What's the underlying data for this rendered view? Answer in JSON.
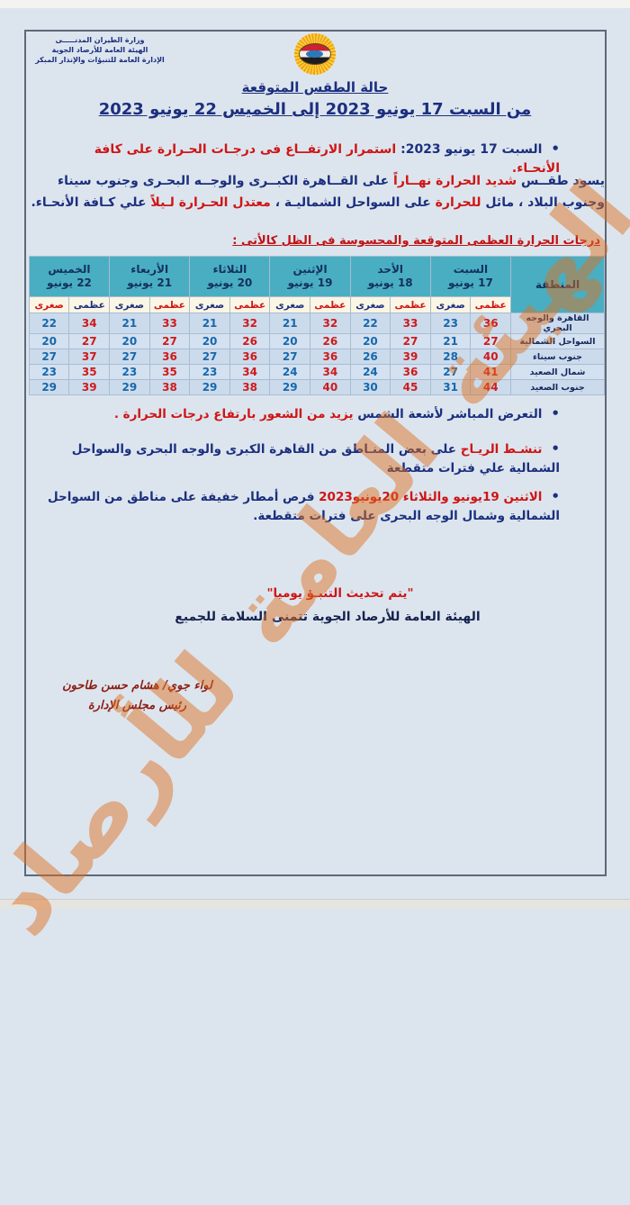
{
  "agency_lines": [
    "وزارة الطيران المدنـــــى",
    "الهيئة العامة للأرصاد الجوية",
    "الإدارة العامة للتنبؤات والإنذار المبكر"
  ],
  "title1": "حالة الطقس المتوقعة",
  "title2": "من السبت 17 يونيو 2023 إلى الخميس 22 يونيو 2023",
  "bullet1": [
    {
      "t": "السبت 17 يونيو 2023: ",
      "tone": "navy"
    },
    {
      "t": "استمرار الارتفــاع فى درجـات الحـرارة على كافة الأنحـاء.",
      "tone": "red"
    }
  ],
  "paragraph": [
    {
      "t": "يسود طقــس ",
      "tone": "navy"
    },
    {
      "t": "شديد الحرارة  نهــاراً ",
      "tone": "red"
    },
    {
      "t": "على القــاهرة الكبــرى والوجــه البحـرى وجنوب سيناء وجنوب البلاد ، مائل ",
      "tone": "navy"
    },
    {
      "t": "للحرارة ",
      "tone": "red"
    },
    {
      "t": "على السواحل الشماليـة ، ",
      "tone": "navy"
    },
    {
      "t": "معتدل الحـرارة لـيلاً ",
      "tone": "red"
    },
    {
      "t": "علي كـافة الأنحـاء.",
      "tone": "navy"
    }
  ],
  "table": {
    "caption": "درجات الحرارة العظمى المتوقعة والمحسوسة فى الظل كالأتى :",
    "region_header": "المنطقة",
    "days": [
      {
        "name": "السبت",
        "date": "17 يونيو",
        "max_label": "عظمى",
        "min_label": "صغرى",
        "max_tone": "red",
        "min_tone": "navy"
      },
      {
        "name": "الأحد",
        "date": "18 يونيو",
        "max_label": "عظمى",
        "min_label": "صغرى",
        "max_tone": "red",
        "min_tone": "navy"
      },
      {
        "name": "الإثنين",
        "date": "19 يونيو",
        "max_label": "عظمى",
        "min_label": "صغرى",
        "max_tone": "red",
        "min_tone": "navy"
      },
      {
        "name": "الثلاثاء",
        "date": "20 يونيو",
        "max_label": "عظمى",
        "min_label": "صغرى",
        "max_tone": "red",
        "min_tone": "navy"
      },
      {
        "name": "الأربعاء",
        "date": "21 يونيو",
        "max_label": "عظمى",
        "min_label": "صغرى",
        "max_tone": "red",
        "min_tone": "navy"
      },
      {
        "name": "الخميس",
        "date": "22 يونيو",
        "max_label": "عظمى",
        "min_label": "صغرى",
        "max_tone": "navy",
        "min_tone": "red"
      }
    ],
    "rows": [
      {
        "region": "القاهرة والوجه البحري",
        "temps": [
          [
            36,
            23
          ],
          [
            33,
            22
          ],
          [
            32,
            21
          ],
          [
            32,
            21
          ],
          [
            33,
            21
          ],
          [
            34,
            22
          ]
        ]
      },
      {
        "region": "السواحل الشمالية",
        "temps": [
          [
            27,
            21
          ],
          [
            27,
            20
          ],
          [
            26,
            20
          ],
          [
            26,
            20
          ],
          [
            27,
            20
          ],
          [
            27,
            20
          ]
        ]
      },
      {
        "region": "جنوب سيناء",
        "temps": [
          [
            40,
            28
          ],
          [
            39,
            26
          ],
          [
            36,
            27
          ],
          [
            36,
            27
          ],
          [
            36,
            27
          ],
          [
            37,
            27
          ]
        ]
      },
      {
        "region": "شمال الصعيد",
        "temps": [
          [
            41,
            27
          ],
          [
            36,
            24
          ],
          [
            34,
            24
          ],
          [
            34,
            23
          ],
          [
            35,
            23
          ],
          [
            35,
            23
          ]
        ]
      },
      {
        "region": "جنوب الصعيد",
        "temps": [
          [
            44,
            31
          ],
          [
            45,
            30
          ],
          [
            40,
            29
          ],
          [
            38,
            29
          ],
          [
            38,
            29
          ],
          [
            39,
            29
          ]
        ]
      }
    ]
  },
  "bullet2": [
    {
      "t": "التعرض المباشر لأشعة الشمس ",
      "tone": "navy"
    },
    {
      "t": "يزيد من الشعور بارتفاع درجات الحرارة .",
      "tone": "red"
    }
  ],
  "bullet3": [
    {
      "t": "تنشـط الريـاح ",
      "tone": "red"
    },
    {
      "t": "على بعض المنـاطق من القاهرة الكبرى والوجه البحرى والسواحل الشمالية علي فترات متقطعة",
      "tone": "navy"
    }
  ],
  "bullet4": [
    {
      "t": "الاثنين 19يونيو والثلاثاء 20يونيو2023 ",
      "tone": "red"
    },
    {
      "t": "فرص أمطار خفيفة على مناطق من السواحل الشمالية وشمال الوجه البحرى على فترات متقطعة.",
      "tone": "navy"
    }
  ],
  "notes": {
    "update": "\"يتم تحديث التنبـؤ يوميا\"",
    "wish": "الهيئة العامة للأرصاد الجوية تتمنى السلامة للجميع"
  },
  "signature": {
    "line1": "لواء جوي/ هشام حسن طاحون",
    "line2": "رئيس مجلس الإدارة"
  },
  "watermark": "الهيئة العامة للأرصاد الجوية",
  "colors": {
    "navy": "#1c2f7e",
    "red": "#cf1515",
    "table_header_teal": "#49aec2",
    "max_red": "#cf1a1a",
    "min_blue": "#1668ad",
    "watermark_orange": "#e0701e",
    "page_blue": "#dce5ee"
  }
}
